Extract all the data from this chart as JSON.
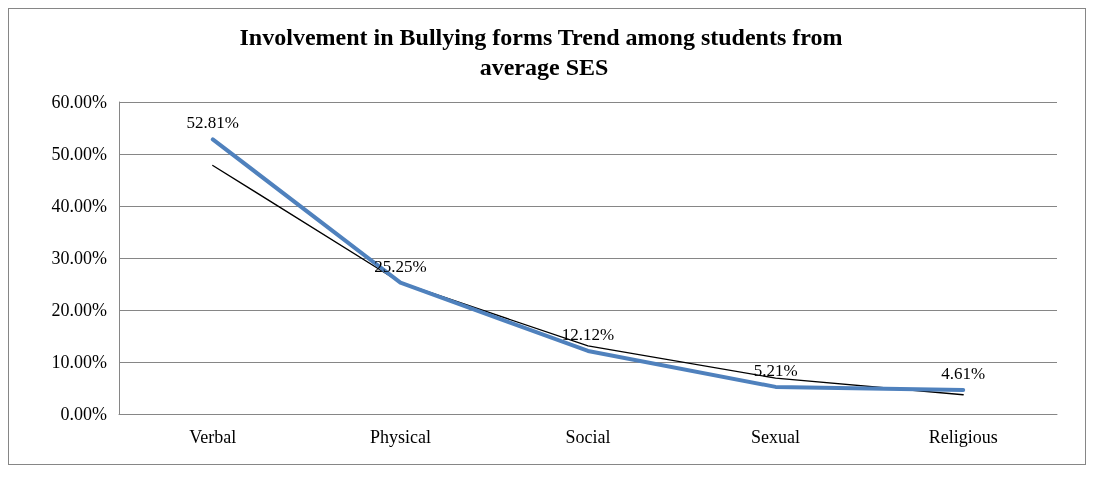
{
  "chart_data": {
    "type": "line",
    "title": "Involvement in Bullying forms Trend among students from average SES",
    "categories": [
      "Verbal",
      "Physical",
      "Social",
      "Sexual",
      "Religious"
    ],
    "series": [
      {
        "color": "#4f81bd",
        "values": [
          52.81,
          25.25,
          12.12,
          5.21,
          4.61
        ],
        "value_labels": [
          "52.81%",
          "25.25%",
          "12.12%",
          "5.21%",
          "4.61%"
        ]
      },
      {
        "color": "#000000",
        "values": [
          47.8,
          25.3,
          13.1,
          6.9,
          3.7
        ]
      }
    ],
    "ylim": [
      0,
      60
    ],
    "yticks": [
      {
        "value": 0,
        "label": "0.00%"
      },
      {
        "value": 10,
        "label": "10.00%"
      },
      {
        "value": 20,
        "label": "20.00%"
      },
      {
        "value": 30,
        "label": "30.00%"
      },
      {
        "value": 40,
        "label": "40.00%"
      },
      {
        "value": 50,
        "label": "50.00%"
      },
      {
        "value": 60,
        "label": "60.00%"
      }
    ],
    "grid": "y",
    "marker": "none",
    "line_style": "solid"
  }
}
